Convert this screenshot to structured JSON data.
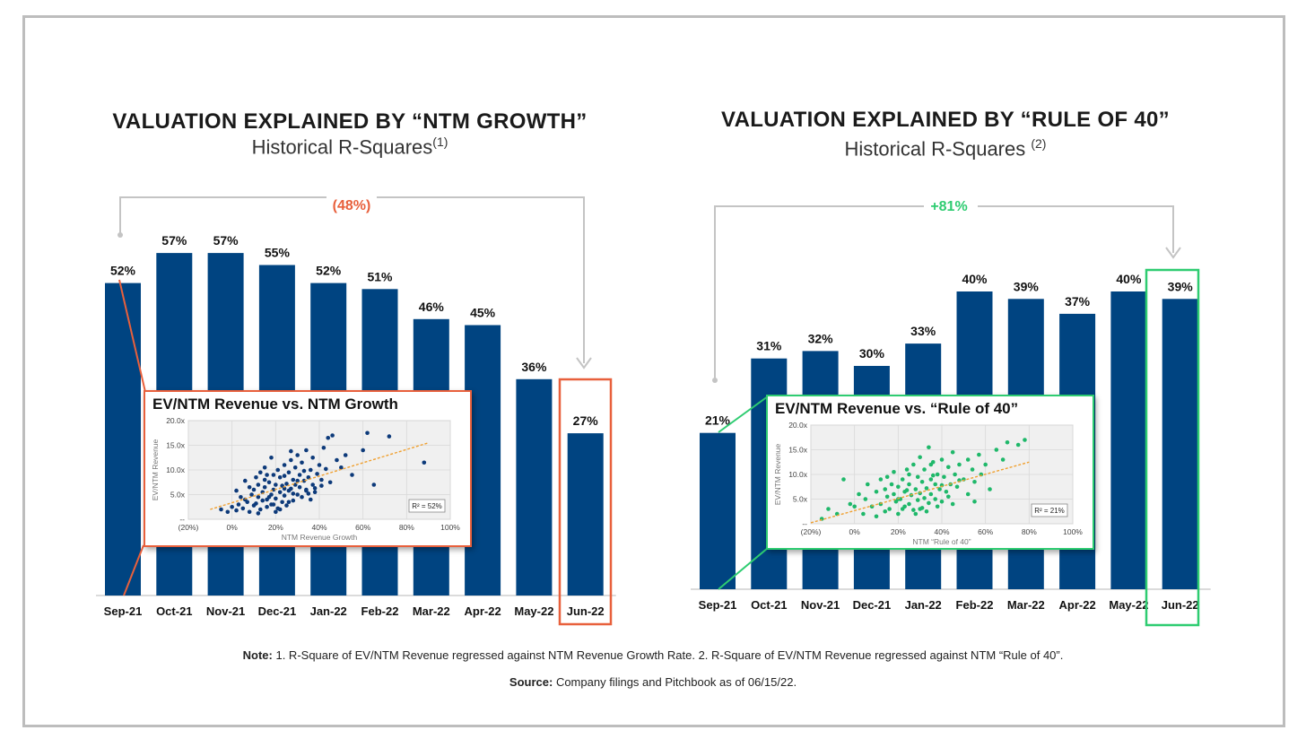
{
  "left": {
    "title": "VALUATION EXPLAINED BY “NTM GROWTH”",
    "subtitle": "Historical R-Squares",
    "subtitle_sup": "(1)",
    "change_label": "(48%)",
    "change_color": "#e8603c",
    "highlight_color": "#e8603c"
  },
  "right": {
    "title": "VALUATION EXPLAINED BY “RULE OF 40”",
    "subtitle": "Historical R-Squares ",
    "subtitle_sup": "(2)",
    "change_label": "+81%",
    "change_color": "#2ecc71",
    "highlight_color": "#2ecc71"
  },
  "chart_data": [
    {
      "type": "bar",
      "categories": [
        "Sep-21",
        "Oct-21",
        "Nov-21",
        "Dec-21",
        "Jan-22",
        "Feb-22",
        "Mar-22",
        "Apr-22",
        "May-22",
        "Jun-22"
      ],
      "values": [
        52,
        57,
        57,
        55,
        52,
        51,
        46,
        45,
        36,
        27
      ],
      "data_labels": [
        "52%",
        "57%",
        "57%",
        "55%",
        "52%",
        "51%",
        "46%",
        "45%",
        "36%",
        "27%"
      ],
      "highlight_index": 9,
      "bar_color": "#004481"
    },
    {
      "type": "bar",
      "categories": [
        "Sep-21",
        "Oct-21",
        "Nov-21",
        "Dec-21",
        "Jan-22",
        "Feb-22",
        "Mar-22",
        "Apr-22",
        "May-22",
        "Jun-22"
      ],
      "values": [
        21,
        31,
        32,
        30,
        33,
        40,
        39,
        37,
        40,
        39
      ],
      "data_labels": [
        "21%",
        "31%",
        "32%",
        "30%",
        "33%",
        "40%",
        "39%",
        "37%",
        "40%",
        "39%"
      ],
      "highlight_index": 9,
      "bar_color": "#004481"
    },
    {
      "type": "scatter",
      "title": "EV/NTM Revenue vs. NTM Growth",
      "xlabel": "NTM Revenue Growth",
      "ylabel": "EV/NTM Revenue",
      "x_ticks": [
        "(20%)",
        "0%",
        "20%",
        "40%",
        "60%",
        "80%",
        "100%"
      ],
      "y_ticks": [
        "--",
        "5.0x",
        "10.0x",
        "15.0x",
        "20.0x"
      ],
      "xlim": [
        -20,
        100
      ],
      "ylim": [
        0,
        20
      ],
      "r2_label": "R² = 52%",
      "point_color": "#0d3a7a",
      "trend": [
        [
          -10,
          2.0
        ],
        [
          90,
          15.5
        ]
      ],
      "points": [
        [
          -5,
          2
        ],
        [
          -2,
          1.5
        ],
        [
          0,
          2.5
        ],
        [
          2,
          1.8
        ],
        [
          3,
          3
        ],
        [
          5,
          2.2
        ],
        [
          6,
          4
        ],
        [
          7,
          3.5
        ],
        [
          8,
          1.5
        ],
        [
          9,
          5
        ],
        [
          10,
          6
        ],
        [
          10,
          2.8
        ],
        [
          11,
          3.2
        ],
        [
          12,
          4.5
        ],
        [
          12,
          7
        ],
        [
          13,
          2
        ],
        [
          14,
          5.5
        ],
        [
          14,
          3.8
        ],
        [
          15,
          6.5
        ],
        [
          15,
          8
        ],
        [
          16,
          4
        ],
        [
          16,
          2.5
        ],
        [
          17,
          7.5
        ],
        [
          18,
          3
        ],
        [
          18,
          5
        ],
        [
          19,
          9
        ],
        [
          19,
          6
        ],
        [
          20,
          4.2
        ],
        [
          20,
          7
        ],
        [
          21,
          2.2
        ],
        [
          21,
          10
        ],
        [
          22,
          5.5
        ],
        [
          22,
          8.5
        ],
        [
          23,
          3.5
        ],
        [
          23,
          6.8
        ],
        [
          24,
          11
        ],
        [
          24,
          4.8
        ],
        [
          25,
          7.2
        ],
        [
          25,
          2.8
        ],
        [
          26,
          9.5
        ],
        [
          26,
          5.8
        ],
        [
          27,
          6.2
        ],
        [
          27,
          12
        ],
        [
          28,
          3.8
        ],
        [
          28,
          8
        ],
        [
          29,
          7
        ],
        [
          29,
          10.5
        ],
        [
          30,
          5
        ],
        [
          30,
          13
        ],
        [
          31,
          6.5
        ],
        [
          31,
          9
        ],
        [
          32,
          4.5
        ],
        [
          32,
          11.5
        ],
        [
          33,
          7.8
        ],
        [
          34,
          6
        ],
        [
          34,
          14
        ],
        [
          35,
          8.5
        ],
        [
          35,
          5.2
        ],
        [
          36,
          10
        ],
        [
          37,
          7
        ],
        [
          37,
          12.5
        ],
        [
          38,
          6.3
        ],
        [
          39,
          9.2
        ],
        [
          40,
          11
        ],
        [
          41,
          8
        ],
        [
          42,
          14.5
        ],
        [
          43,
          10.2
        ],
        [
          44,
          16.5
        ],
        [
          45,
          7.5
        ],
        [
          46,
          17
        ],
        [
          48,
          12
        ],
        [
          50,
          10.5
        ],
        [
          52,
          13
        ],
        [
          55,
          9
        ],
        [
          60,
          14
        ],
        [
          62,
          17.5
        ],
        [
          65,
          7
        ],
        [
          72,
          16.8
        ],
        [
          88,
          11.5
        ],
        [
          4,
          4.5
        ],
        [
          8,
          6.5
        ],
        [
          11,
          8.5
        ],
        [
          13,
          9.5
        ],
        [
          17,
          4.5
        ],
        [
          19,
          3
        ],
        [
          22,
          2
        ],
        [
          24,
          6.2
        ],
        [
          26,
          3.5
        ],
        [
          28,
          5.2
        ],
        [
          30,
          7.8
        ],
        [
          33,
          9.8
        ],
        [
          36,
          4
        ],
        [
          38,
          5.5
        ],
        [
          41,
          6.8
        ],
        [
          2,
          5.8
        ],
        [
          6,
          7.8
        ],
        [
          15,
          10.5
        ],
        [
          18,
          12.5
        ],
        [
          27,
          13.8
        ],
        [
          12,
          1.2
        ],
        [
          20,
          1.5
        ],
        [
          16,
          9
        ],
        [
          24,
          8.8
        ],
        [
          34,
          5.8
        ]
      ]
    },
    {
      "type": "scatter",
      "title": "EV/NTM Revenue vs. “Rule of 40”",
      "xlabel": "NTM “Rule of 40”",
      "ylabel": "EV/NTM Revenue",
      "x_ticks": [
        "(20%)",
        "0%",
        "20%",
        "40%",
        "60%",
        "80%",
        "100%"
      ],
      "y_ticks": [
        "--",
        "5.0x",
        "10.0x",
        "15.0x",
        "20.0x"
      ],
      "xlim": [
        -20,
        100
      ],
      "ylim": [
        0,
        20
      ],
      "r2_label": "R² = 21%",
      "point_color": "#1fb86a",
      "trend": [
        [
          -20,
          0.2
        ],
        [
          80,
          12.5
        ]
      ],
      "points": [
        [
          -15,
          1
        ],
        [
          -12,
          3
        ],
        [
          -8,
          2
        ],
        [
          -5,
          9
        ],
        [
          -2,
          4
        ],
        [
          0,
          3.5
        ],
        [
          2,
          6
        ],
        [
          4,
          2
        ],
        [
          5,
          5
        ],
        [
          6,
          8
        ],
        [
          8,
          3.5
        ],
        [
          10,
          1.5
        ],
        [
          10,
          6.5
        ],
        [
          12,
          4
        ],
        [
          12,
          9
        ],
        [
          14,
          2.5
        ],
        [
          14,
          7
        ],
        [
          15,
          5.5
        ],
        [
          16,
          3
        ],
        [
          17,
          8
        ],
        [
          18,
          6
        ],
        [
          18,
          10.5
        ],
        [
          19,
          4.5
        ],
        [
          20,
          2
        ],
        [
          20,
          7.5
        ],
        [
          21,
          5
        ],
        [
          22,
          9
        ],
        [
          23,
          3.5
        ],
        [
          23,
          6.5
        ],
        [
          24,
          11
        ],
        [
          25,
          4
        ],
        [
          25,
          8
        ],
        [
          26,
          5.8
        ],
        [
          27,
          2.8
        ],
        [
          27,
          12
        ],
        [
          28,
          7
        ],
        [
          29,
          4.8
        ],
        [
          29,
          9.5
        ],
        [
          30,
          6.2
        ],
        [
          30,
          13.5
        ],
        [
          31,
          3.2
        ],
        [
          31,
          8.5
        ],
        [
          32,
          5.2
        ],
        [
          32,
          11
        ],
        [
          33,
          7.2
        ],
        [
          34,
          4.2
        ],
        [
          34,
          15.5
        ],
        [
          35,
          9
        ],
        [
          35,
          6
        ],
        [
          36,
          12.5
        ],
        [
          37,
          5
        ],
        [
          37,
          8
        ],
        [
          38,
          10
        ],
        [
          39,
          7
        ],
        [
          40,
          13
        ],
        [
          40,
          4.5
        ],
        [
          41,
          9.5
        ],
        [
          42,
          6.5
        ],
        [
          43,
          11.5
        ],
        [
          44,
          8
        ],
        [
          45,
          14.5
        ],
        [
          46,
          10
        ],
        [
          47,
          7.5
        ],
        [
          48,
          12
        ],
        [
          50,
          9
        ],
        [
          52,
          13
        ],
        [
          54,
          11
        ],
        [
          55,
          8.5
        ],
        [
          57,
          14
        ],
        [
          60,
          12
        ],
        [
          62,
          7
        ],
        [
          65,
          15
        ],
        [
          68,
          13
        ],
        [
          70,
          16.5
        ],
        [
          75,
          16
        ],
        [
          78,
          17
        ],
        [
          45,
          4
        ],
        [
          52,
          6
        ],
        [
          58,
          10
        ],
        [
          20,
          5
        ],
        [
          25,
          10
        ],
        [
          30,
          3
        ],
        [
          35,
          12
        ],
        [
          40,
          7.8
        ],
        [
          22,
          3
        ],
        [
          28,
          2
        ],
        [
          33,
          2.5
        ],
        [
          38,
          3.5
        ],
        [
          15,
          9.5
        ],
        [
          43,
          5.5
        ],
        [
          48,
          8.8
        ],
        [
          55,
          4.5
        ],
        [
          24,
          6.8
        ],
        [
          36,
          9.8
        ]
      ]
    }
  ],
  "footer": {
    "note_label": "Note:",
    "note_text": " 1. R-Square of EV/NTM Revenue regressed against NTM Revenue Growth Rate. 2. R-Square of EV/NTM Revenue regressed against NTM “Rule of 40”.",
    "source_label": "Source:",
    "source_text": " Company filings and Pitchbook as of 06/15/22."
  }
}
